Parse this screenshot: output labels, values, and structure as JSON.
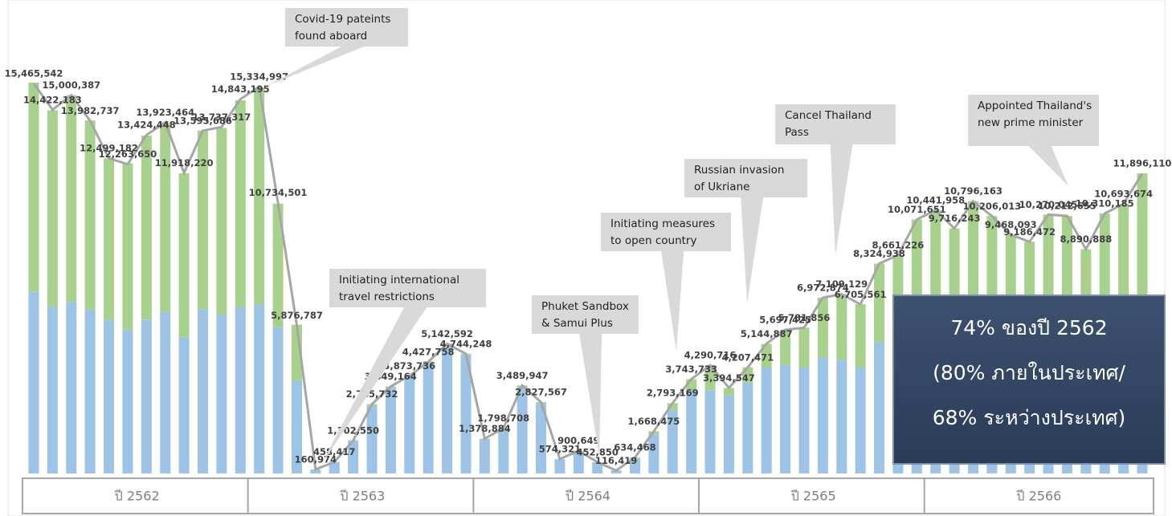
{
  "chart_data": {
    "type": "bar",
    "categories_groups": [
      "ปี 2562",
      "ปี 2563",
      "ปี 2564",
      "ปี 2565",
      "ปี 2566"
    ],
    "series": [
      {
        "color": "#9dc3e6",
        "values": [
          7200000,
          6600000,
          6800000,
          6500000,
          6100000,
          5700000,
          6100000,
          6400000,
          5400000,
          6500000,
          6300000,
          6600000,
          6700000,
          5800000,
          3700000,
          150000,
          450000,
          1300000,
          2700000,
          3400000,
          3850000,
          4400000,
          5100000,
          4700000,
          1350000,
          1750000,
          3400000,
          2750000,
          550000,
          880000,
          440000,
          110000,
          600000,
          1550000,
          2500000,
          3300000,
          3300000,
          3100000,
          3600000,
          4200000,
          4300000,
          4200000,
          4600000,
          4500000,
          4200000,
          5200000,
          5400000,
          5800000,
          5900000,
          5500000,
          5900000,
          5600000,
          5300000,
          5100000,
          5600000,
          5600000,
          5000000,
          5600000,
          5800000,
          6300000
        ]
      },
      {
        "color": "#a9d18e",
        "values": [
          8300000,
          7800000,
          8200000,
          7500000,
          6400000,
          6600000,
          7300000,
          7500000,
          6500000,
          7100000,
          7400000,
          8200000,
          8600000,
          4900000,
          2200000,
          10000,
          10000,
          20000,
          50000,
          50000,
          50000,
          50000,
          50000,
          50000,
          30000,
          50000,
          90000,
          80000,
          20000,
          20000,
          10000,
          10000,
          30000,
          120000,
          290000,
          440000,
          990000,
          290000,
          610000,
          940000,
          1400000,
          1580000,
          2370000,
          2610000,
          2510000,
          3120000,
          3260000,
          4270000,
          4540000,
          4220000,
          4900000,
          4610000,
          4170000,
          4090000,
          4670000,
          4610000,
          3890000,
          4710000,
          4890000,
          5600000
        ]
      }
    ],
    "line": {
      "color": "#a6a6a6",
      "values": [
        15465542,
        14422183,
        15000387,
        13982737,
        12499182,
        12263650,
        13424448,
        13923464,
        11918220,
        13595686,
        13737317,
        14843195,
        15334997,
        10734501,
        5876787,
        160974,
        458417,
        1302550,
        2745732,
        3449164,
        3873736,
        4427758,
        5142592,
        4744248,
        1378884,
        1798708,
        3489947,
        2827567,
        574321,
        900649,
        452850,
        116419,
        634468,
        1668475,
        2793169,
        3743733,
        4290716,
        3394547,
        4207471,
        5144887,
        5697425,
        5781856,
        6972874,
        7109129,
        6705561,
        8324938,
        8661226,
        10071651,
        10441958,
        9716243,
        10796163,
        10206013,
        9468093,
        9186472,
        10270045,
        10212655,
        8890888,
        10310185,
        10693674,
        11896110
      ],
      "value_labels": [
        "15,465,542",
        "14,422,183",
        "15,000,387",
        "13,982,737",
        "12,499,182",
        "12,263,650",
        "13,424,448",
        "13,923,464",
        "11,918,220",
        "13,595,686",
        "13,737,317",
        "14,843,195",
        "15,334,997",
        "10,734,501",
        "5,876,787",
        "160,974",
        "458,417",
        "1,302,550",
        "2,745,732",
        "3,449,164",
        "3,873,736",
        "4,427,758",
        "5,142,592",
        "4,744,248",
        "1,378,884",
        "1,798,708",
        "3,489,947",
        "2,827,567",
        "574,321",
        "900,649",
        "452,850",
        "116,419",
        "634,468",
        "1,668,475",
        "2,793,169",
        "3,743,733",
        "4,290,716",
        "3,394,547",
        "4,207,471",
        "5,144,887",
        "5,697,425",
        "5,781,856",
        "6,972,874",
        "7,109,129",
        "6,705,561",
        "8,324,938",
        "8,661,226",
        "10,071,651",
        "10,441,958",
        "9,716,243",
        "10,796,163",
        "10,206,013",
        "9,468,093",
        "9,186,472",
        "10,270,045",
        "10,212,655",
        "8,890,888",
        "10,310,185",
        "10,693,674",
        "11,896,110"
      ]
    },
    "annotations": [
      {
        "lines": [
          "Covid-19 pateints",
          "found aboard"
        ]
      },
      {
        "lines": [
          "Initiating international",
          "travel restrictions"
        ]
      },
      {
        "lines": [
          "Phuket Sandbox",
          "& Samui Plus"
        ]
      },
      {
        "lines": [
          "Initiating measures",
          "to open country"
        ]
      },
      {
        "lines": [
          "Russian invasion",
          "of Ukriane"
        ]
      },
      {
        "lines": [
          "Cancel Thailand",
          "Pass"
        ]
      },
      {
        "lines": [
          "Appointed Thailand's",
          "new  prime minister"
        ]
      }
    ],
    "highlight": {
      "lines": [
        "74% ของปี 2562",
        "(80% ภายในประเทศ/",
        "68% ระหว่างประเทศ)"
      ]
    }
  }
}
